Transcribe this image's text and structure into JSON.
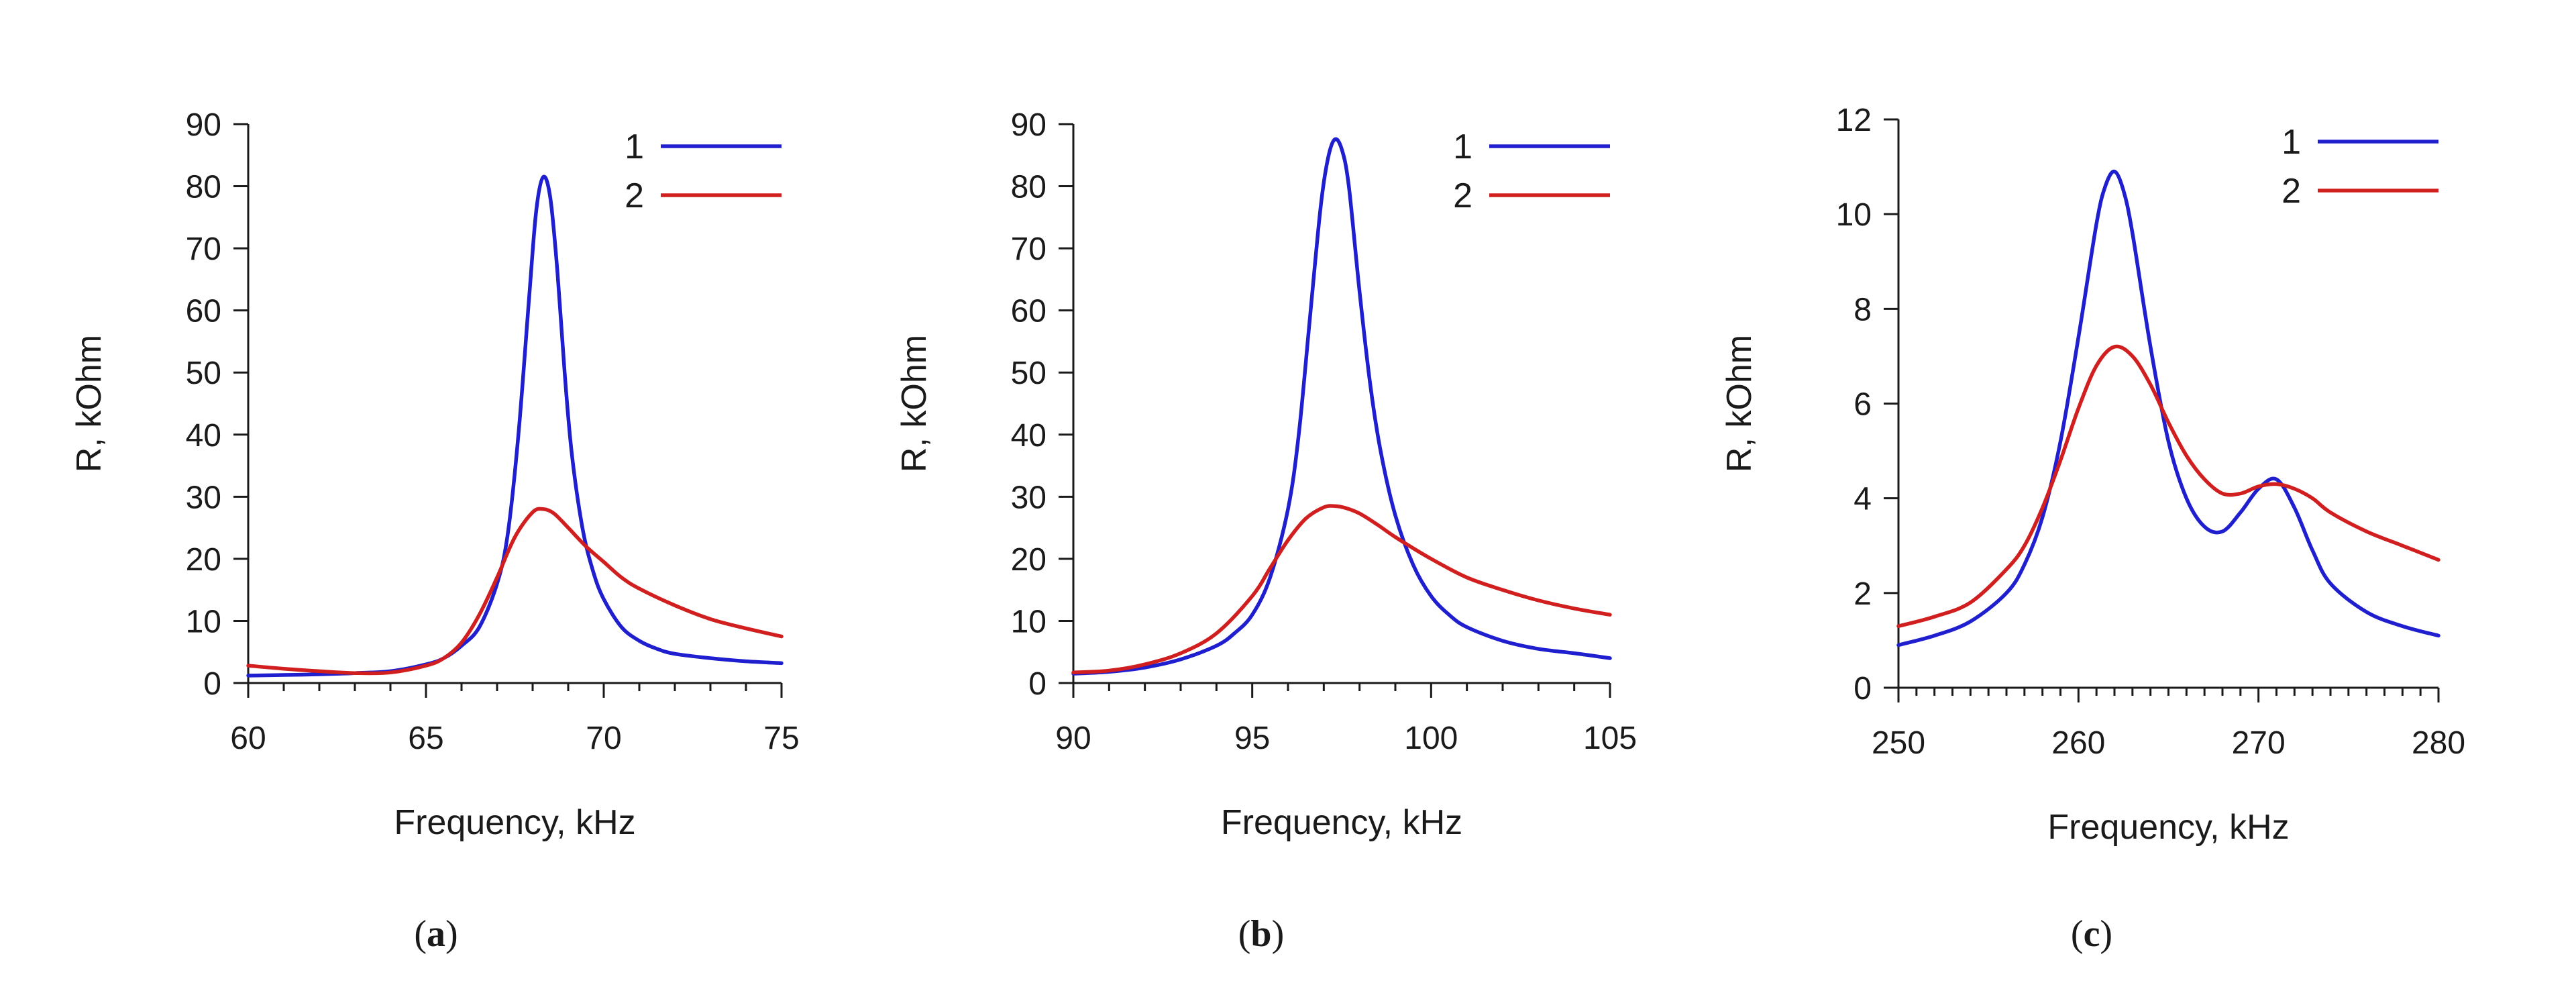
{
  "chart_data": [
    {
      "type": "line",
      "panel": "a",
      "caption_open": "(",
      "caption_letter": "a",
      "caption_close": ")",
      "xlabel": "Frequency, kHz",
      "ylabel": "R, kOhm",
      "xlim": [
        60,
        75
      ],
      "ylim": [
        0,
        90
      ],
      "xticks": [
        60,
        65,
        70,
        75
      ],
      "yticks": [
        0,
        10,
        20,
        30,
        40,
        50,
        60,
        70,
        80,
        90
      ],
      "xminor_step": 1,
      "legend_position": "top-right",
      "series": [
        {
          "name": "1",
          "color": "#1f1fcf",
          "x": [
            60,
            61,
            62,
            63,
            64,
            65,
            65.5,
            66,
            66.5,
            67,
            67.3,
            67.6,
            67.9,
            68.1,
            68.3,
            68.5,
            68.7,
            68.9,
            69.1,
            69.4,
            69.7,
            70,
            70.5,
            71,
            71.5,
            72,
            73,
            74,
            75
          ],
          "y": [
            1.2,
            1.3,
            1.4,
            1.6,
            1.9,
            3.0,
            4.0,
            6.0,
            9.0,
            16.0,
            24.0,
            40.0,
            62.0,
            76.0,
            81.5,
            78.0,
            66.0,
            50.0,
            37.0,
            25.0,
            18.0,
            13.5,
            9.0,
            6.8,
            5.5,
            4.7,
            4.0,
            3.5,
            3.2
          ]
        },
        {
          "name": "2",
          "color": "#d11f1f",
          "x": [
            60,
            61,
            62,
            63,
            64,
            65,
            65.5,
            66,
            66.5,
            67,
            67.5,
            68,
            68.3,
            68.6,
            69,
            69.5,
            70,
            70.5,
            71,
            72,
            73,
            74,
            75
          ],
          "y": [
            2.8,
            2.3,
            1.9,
            1.6,
            1.7,
            2.8,
            4.0,
            6.5,
            11.0,
            17.0,
            23.5,
            27.5,
            28.0,
            27.3,
            25.0,
            22.0,
            19.5,
            17.0,
            15.2,
            12.5,
            10.3,
            8.8,
            7.5
          ]
        }
      ]
    },
    {
      "type": "line",
      "panel": "b",
      "caption_open": "(",
      "caption_letter": "b",
      "caption_close": ")",
      "xlabel": "Frequency, kHz",
      "ylabel": "R, kOhm",
      "xlim": [
        90,
        105
      ],
      "ylim": [
        0,
        90
      ],
      "xticks": [
        90,
        95,
        100,
        105
      ],
      "yticks": [
        0,
        10,
        20,
        30,
        40,
        50,
        60,
        70,
        80,
        90
      ],
      "xminor_step": 1,
      "legend_position": "top-right",
      "series": [
        {
          "name": "1",
          "color": "#1f1fcf",
          "x": [
            90,
            91,
            92,
            93,
            94,
            94.5,
            95,
            95.5,
            96,
            96.3,
            96.6,
            96.9,
            97.1,
            97.3,
            97.5,
            97.7,
            98,
            98.3,
            98.6,
            99,
            99.5,
            100,
            100.5,
            101,
            102,
            103,
            104,
            105
          ],
          "y": [
            1.5,
            1.8,
            2.5,
            3.8,
            6.0,
            8.0,
            11.0,
            17.0,
            28.0,
            40.0,
            58.0,
            76.0,
            84.0,
            87.5,
            86.0,
            80.0,
            63.0,
            48.0,
            37.0,
            27.0,
            19.0,
            14.0,
            11.0,
            9.0,
            6.8,
            5.5,
            4.8,
            4.0
          ]
        },
        {
          "name": "2",
          "color": "#d11f1f",
          "x": [
            90,
            91,
            92,
            93,
            94,
            95,
            95.5,
            96,
            96.5,
            97,
            97.3,
            97.6,
            98,
            98.5,
            99,
            100,
            101,
            102,
            103,
            104,
            105
          ],
          "y": [
            1.7,
            2.0,
            3.0,
            4.8,
            8.0,
            14.0,
            18.5,
            23.0,
            26.5,
            28.3,
            28.5,
            28.2,
            27.3,
            25.5,
            23.5,
            20.0,
            17.0,
            15.0,
            13.3,
            12.0,
            11.0
          ]
        }
      ]
    },
    {
      "type": "line",
      "panel": "c",
      "caption_open": "(",
      "caption_letter": "c",
      "caption_close": ")",
      "xlabel": "Frequency, kHz",
      "ylabel": "R, kOhm",
      "xlim": [
        250,
        280
      ],
      "ylim": [
        0,
        12
      ],
      "xticks": [
        250,
        260,
        270,
        280
      ],
      "yticks": [
        0,
        2,
        4,
        6,
        8,
        10,
        12
      ],
      "xminor_step": 1,
      "legend_position": "top-right",
      "series": [
        {
          "name": "1",
          "color": "#1f1fcf",
          "x": [
            250,
            252,
            254,
            256,
            257,
            258,
            259,
            260,
            261,
            261.5,
            262,
            262.5,
            263,
            264,
            265,
            266,
            267,
            268,
            269,
            270,
            271,
            272,
            273,
            274,
            276,
            278,
            280
          ],
          "y": [
            0.9,
            1.1,
            1.4,
            2.0,
            2.6,
            3.6,
            5.2,
            7.4,
            9.8,
            10.6,
            10.9,
            10.5,
            9.6,
            7.2,
            5.2,
            4.0,
            3.4,
            3.3,
            3.7,
            4.2,
            4.4,
            3.8,
            2.9,
            2.2,
            1.6,
            1.3,
            1.1
          ]
        },
        {
          "name": "2",
          "color": "#d11f1f",
          "x": [
            250,
            252,
            254,
            256,
            257,
            258,
            259,
            260,
            261,
            262,
            263,
            264,
            265,
            266,
            267,
            268,
            269,
            270,
            271,
            272,
            273,
            274,
            276,
            278,
            280
          ],
          "y": [
            1.3,
            1.5,
            1.8,
            2.5,
            3.0,
            3.8,
            4.8,
            5.9,
            6.8,
            7.2,
            7.0,
            6.4,
            5.6,
            4.9,
            4.4,
            4.1,
            4.1,
            4.25,
            4.3,
            4.2,
            4.0,
            3.7,
            3.3,
            3.0,
            2.7
          ]
        }
      ]
    }
  ]
}
